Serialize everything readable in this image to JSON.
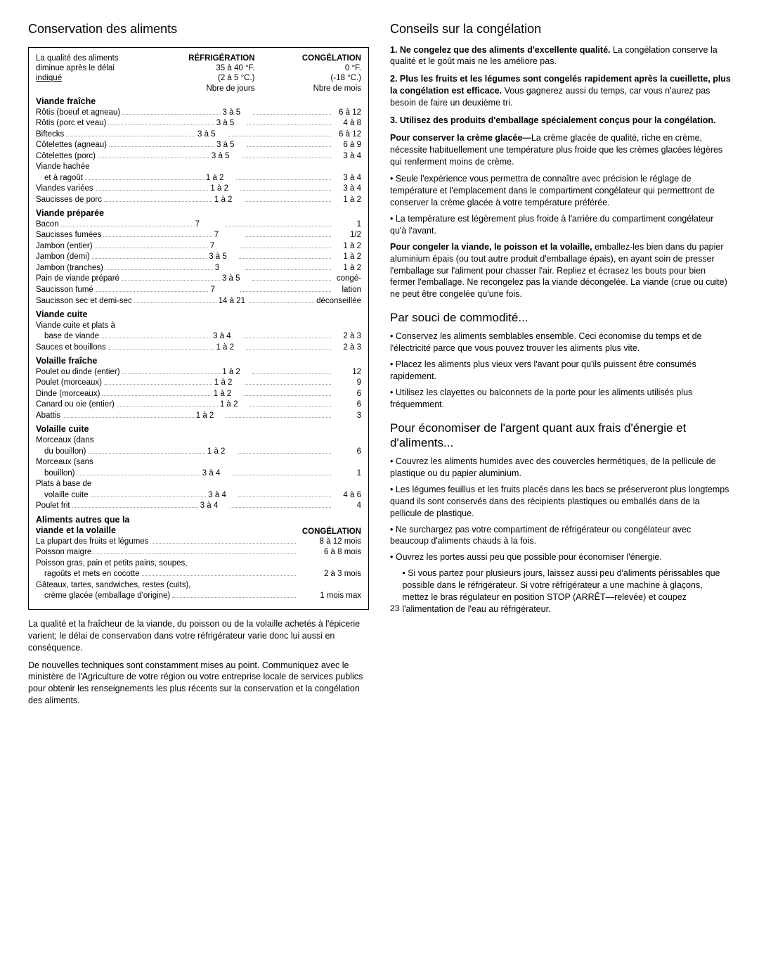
{
  "left": {
    "title": "Conservation des aliments",
    "header": {
      "col_left_lines": [
        "La qualité des aliments",
        "diminue après le délai",
        "indiqué"
      ],
      "col_mid_title": "RÉFRIGÉRATION",
      "col_mid_lines": [
        "35 à 40 °F.",
        "(2 à 5 °C.)",
        "Nbre de jours"
      ],
      "col_right_title": "CONGÉLATION",
      "col_right_lines": [
        "0 °F.",
        "(-18 °C.)",
        "Nbre de mois"
      ]
    },
    "sections": [
      {
        "title": "Viande fraîche",
        "rows": [
          {
            "label": "Rôtis (boeuf et agneau)",
            "v1": "3 à 5",
            "v2": "6 à 12"
          },
          {
            "label": "Rôtis (porc et veau)",
            "v1": "3 à 5",
            "v2": "4 à 8"
          },
          {
            "label": "Biftecks",
            "v1": "3 à 5",
            "v2": "6 à 12"
          },
          {
            "label": "Côtelettes (agneau)",
            "v1": "3 à 5",
            "v2": "6 à 9"
          },
          {
            "label": "Côtelettes (porc)",
            "v1": "3 à 5",
            "v2": "3 à 4"
          },
          {
            "label": "Viande hachée",
            "plain": true
          },
          {
            "label": "et à ragoût",
            "indent": true,
            "v1": "1 à 2",
            "v2": "3 à 4"
          },
          {
            "label": "Viandes variées",
            "v1": "1 à 2",
            "v2": "3 à 4"
          },
          {
            "label": "Saucisses de porc",
            "v1": "1 à 2",
            "v2": "1 à 2"
          }
        ]
      },
      {
        "title": "Viande préparée",
        "rows": [
          {
            "label": "Bacon",
            "v1": "7",
            "v2": "1"
          },
          {
            "label": "Saucisses fumées",
            "v1": "7",
            "v2": "1/2"
          },
          {
            "label": "Jambon (entier)",
            "v1": "7",
            "v2": "1 à 2"
          },
          {
            "label": "Jambon (demi)",
            "v1": "3 à 5",
            "v2": "1 à 2"
          },
          {
            "label": "Jambon (tranches)",
            "v1": "3",
            "v2": "1 à 2"
          },
          {
            "label": "Pain de viande préparé",
            "v1": "3 à 5",
            "v2": "congé-"
          },
          {
            "label": "Saucisson fumé",
            "v1": "7",
            "v2": "lation"
          },
          {
            "label": "Saucisson sec et demi-sec",
            "v1": "14 à 21",
            "v2": "déconseillée"
          }
        ]
      },
      {
        "title": "Viande cuite",
        "rows": [
          {
            "label": "Viande cuite et plats à",
            "plain": true
          },
          {
            "label": "base de viande",
            "indent": true,
            "v1": "3 à 4",
            "v2": "2 à 3"
          },
          {
            "label": "Sauces et bouillons",
            "v1": "1 à 2",
            "v2": "2 à 3"
          }
        ]
      },
      {
        "title": "Volaille fraîche",
        "rows": [
          {
            "label": "Poulet ou dinde (entier)",
            "v1": "1 à 2",
            "v2": "12"
          },
          {
            "label": "Poulet (morceaux)",
            "v1": "1 à 2",
            "v2": "9"
          },
          {
            "label": "Dinde (morceaux)",
            "v1": "1 à 2",
            "v2": "6"
          },
          {
            "label": "Canard ou oie (entier)",
            "v1": "1 à 2",
            "v2": "6"
          },
          {
            "label": "Abattis",
            "v1": "1 à 2",
            "v2": "3"
          }
        ]
      },
      {
        "title": "Volaille cuite",
        "rows": [
          {
            "label": "Morceaux (dans",
            "plain": true
          },
          {
            "label": "du bouillon)",
            "indent": true,
            "v1": "1 à 2",
            "v2": "6"
          },
          {
            "label": "Morceaux (sans",
            "plain": true
          },
          {
            "label": "bouillon)",
            "indent": true,
            "v1": "3 à 4",
            "v2": "1"
          },
          {
            "label": "Plats à base de",
            "plain": true
          },
          {
            "label": "volaille cuite",
            "indent": true,
            "v1": "3 à 4",
            "v2": "4 à 6"
          },
          {
            "label": "Poulet frit",
            "v1": "3 à 4",
            "v2": "4"
          }
        ]
      },
      {
        "title": "Aliments autres que la\nviande et la volaille",
        "right_header": "CONGÉLATION",
        "full_rows": [
          {
            "label": "La plupart des fruits et légumes",
            "v2": "8 à 12 mois"
          },
          {
            "label": "Poisson maigre",
            "v2": "6 à 8 mois"
          },
          {
            "label": "Poisson gras, pain et petits pains, soupes,",
            "plain": true
          },
          {
            "label": "ragoûts et mets en cocotte",
            "indent": true,
            "v2": "2 à 3 mois"
          },
          {
            "label": "Gâteaux, tartes, sandwiches, restes (cuits),",
            "plain": true
          },
          {
            "label": "crème glacée (emballage d'origine)",
            "indent": true,
            "v2": "1 mois max"
          }
        ]
      }
    ],
    "footnote_paras": [
      "La qualité et la fraîcheur de la viande, du poisson ou de la volaille achetés à l'épicerie varient; le délai de conservation dans votre réfrigérateur varie donc lui aussi en conséquence.",
      "De nouvelles techniques sont constamment mises au point. Communiquez avec le ministère de l'Agriculture de votre région ou votre entreprise locale de services publics pour obtenir les renseignements les plus récents sur la conservation et la congélation des aliments."
    ]
  },
  "right": {
    "title": "Conseils sur la congélation",
    "numbered": [
      {
        "lead": "1. Ne congelez que des aliments d'excellente qualité.",
        "rest": " La congélation conserve la qualité et le goût mais ne les améliore pas."
      },
      {
        "lead": "2. Plus les fruits et les légumes sont congelés rapidement après la cueillette, plus la congélation est efficace.",
        "rest": " Vous gagnerez aussi du temps, car vous n'aurez pas besoin de faire un deuxième tri."
      },
      {
        "lead": "3. Utilisez des produits d'emballage spécialement conçus pour la congélation.",
        "rest": ""
      }
    ],
    "paragraphs": [
      {
        "lead": "Pour conserver la crème glacée—",
        "rest": "La crème glacée de qualité, riche en crème, nécessite habituellement une température plus froide que les crèmes glacées légères qui renferment moins de crème."
      }
    ],
    "bullets1": [
      "• Seule l'expérience vous permettra de connaître avec précision le réglage de température et l'emplacement dans le compartiment congélateur qui permettront de conserver la crème glacée à votre température préférée.",
      "• La température est légèrement plus froide à l'arrière du compartiment congélateur qu'à l'avant."
    ],
    "para2": {
      "lead": "Pour congeler la viande, le poisson et la volaille,",
      "rest": " emballez-les bien dans du papier aluminium épais (ou tout autre produit d'emballage épais), en ayant soin de presser l'emballage sur l'aliment pour chasser l'air. Repliez et écrasez les bouts pour bien fermer l'emballage. Ne recongelez pas la viande décongelée. La viande (crue ou cuite) ne peut être congelée qu'une fois."
    },
    "sub1_title": "Par souci de commodité...",
    "sub1_bullets": [
      "• Conservez les aliments semblables ensemble. Ceci économise du temps et de l'électricité parce que vous pouvez trouver les aliments plus vite.",
      "• Placez les aliments plus vieux vers l'avant pour qu'ils puissent être consumés rapidement.",
      "• Utilisez les clayettes ou balconnets de la porte pour les aliments utilisés plus fréquemment."
    ],
    "sub2_title": "Pour économiser de l'argent quant aux frais d'énergie et d'aliments...",
    "sub2_bullets": [
      "• Couvrez les aliments humides avec des couvercles hermétiques, de la pellicule de plastique ou du papier aluminium.",
      "• Les légumes feuillus et les fruits placés dans les bacs se préserveront plus longtemps quand ils sont conservés dans des récipients plastiques ou emballés dans de la pellicule de plastique.",
      "• Ne surchargez pas votre compartiment de réfrigérateur ou congélateur avec beaucoup d'aliments chauds à la fois.",
      "• Ouvrez les portes aussi peu que possible pour économiser l'énergie.",
      "• Si vous partez pour plusieurs jours, laissez aussi peu d'aliments périssables que possible dans le réfrigérateur. Si votre réfrigérateur a une machine à glaçons, mettez le bras régulateur en position STOP (ARRÊT—relevée) et coupez l'alimentation de l'eau au réfrigérateur."
    ],
    "page_number": "23"
  }
}
